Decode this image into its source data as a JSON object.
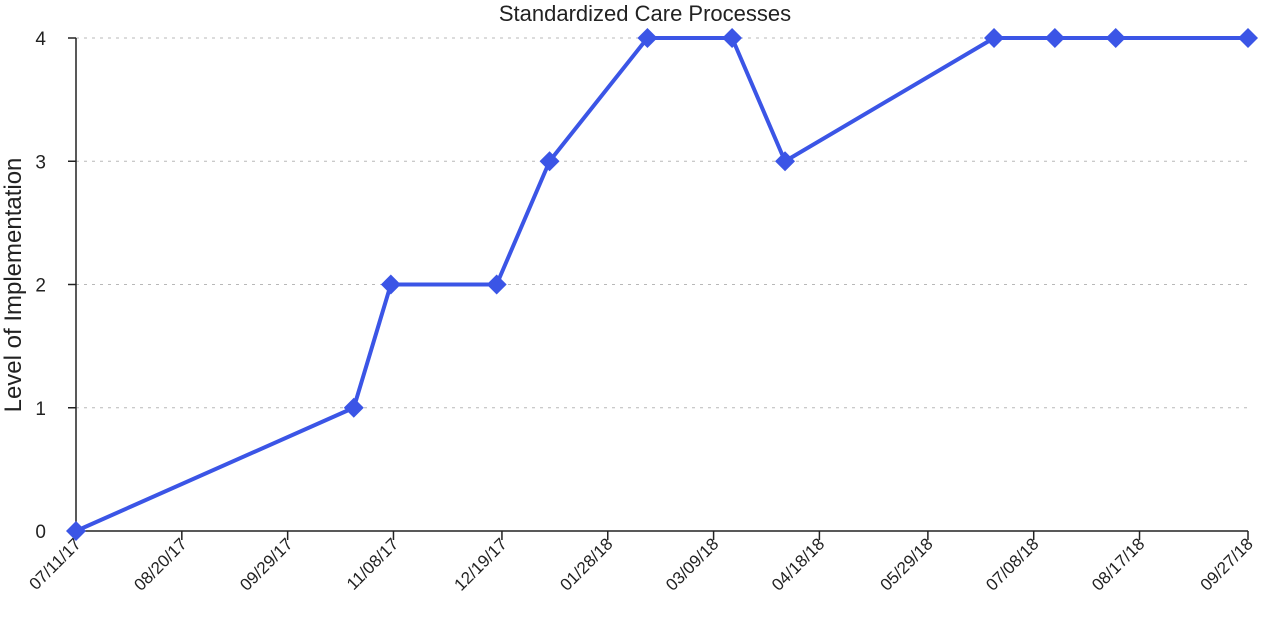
{
  "chart_data": {
    "type": "line",
    "title": "Standardized Care Processes",
    "xlabel": "",
    "ylabel": "Level of Implementation",
    "x_type": "date",
    "x_tick_labels": [
      "07/11/17",
      "08/20/17",
      "09/29/17",
      "11/08/17",
      "12/19/17",
      "01/28/18",
      "03/09/18",
      "04/18/18",
      "05/29/18",
      "07/08/18",
      "08/17/18",
      "09/27/18"
    ],
    "y_ticks": [
      0,
      1,
      2,
      3,
      4
    ],
    "ylim": [
      0,
      4
    ],
    "grid": "horizontal-dashed",
    "colors": {
      "series": "#3b55e6",
      "axis": "#222222",
      "grid": "#b8b8b8"
    },
    "series": [
      {
        "x": [
          "2017-07-11",
          "2017-10-24",
          "2017-11-07",
          "2017-12-17",
          "2018-01-06",
          "2018-02-12",
          "2018-03-16",
          "2018-04-05",
          "2018-06-23",
          "2018-07-16",
          "2018-08-08",
          "2018-09-27"
        ],
        "y": [
          0,
          1,
          2,
          2,
          3,
          4,
          4,
          3,
          4,
          4,
          4,
          4
        ]
      }
    ]
  }
}
